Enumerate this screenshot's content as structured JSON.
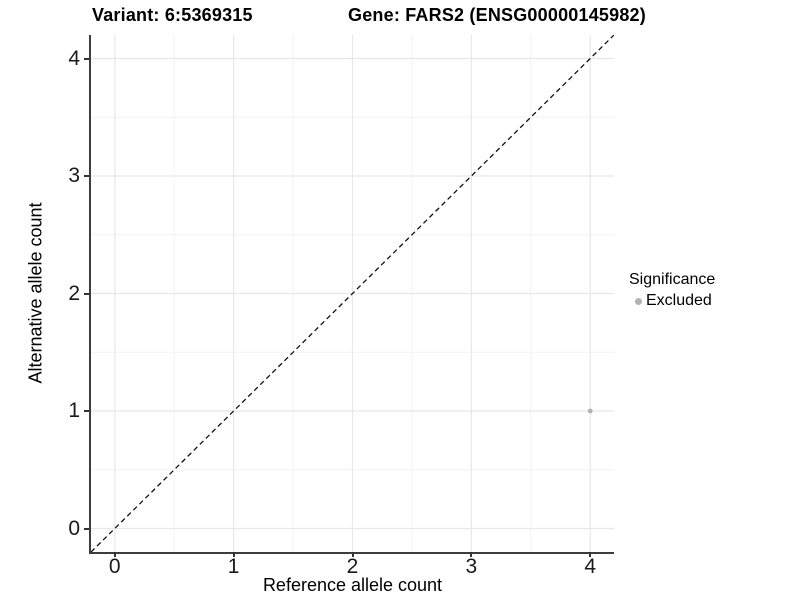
{
  "header": {
    "variant_title": "Variant: 6:5369315",
    "gene_title": "Gene: FARS2 (ENSG00000145982)"
  },
  "chart_data": {
    "type": "scatter",
    "xlabel": "Reference allele count",
    "ylabel": "Alternative allele count",
    "xlim": [
      -0.2,
      4.2
    ],
    "ylim": [
      -0.2,
      4.2
    ],
    "xticks": [
      0,
      1,
      2,
      3,
      4
    ],
    "yticks": [
      0,
      1,
      2,
      3,
      4
    ],
    "grid": {
      "major_every": 1,
      "minor_every": 0.5,
      "grid_on": true
    },
    "series": [
      {
        "name": "Excluded",
        "marker_color": "#b3b3b3",
        "points": [
          {
            "x": 4,
            "y": 1
          }
        ]
      }
    ],
    "reference_line": {
      "style": "dashed",
      "color": "#111111",
      "from": [
        -0.2,
        -0.2
      ],
      "to": [
        4.2,
        4.2
      ]
    },
    "legend": {
      "position": "right",
      "title": "Significance",
      "items": [
        {
          "label": "Excluded",
          "color": "#b3b3b3",
          "marker": "dot"
        }
      ]
    }
  }
}
